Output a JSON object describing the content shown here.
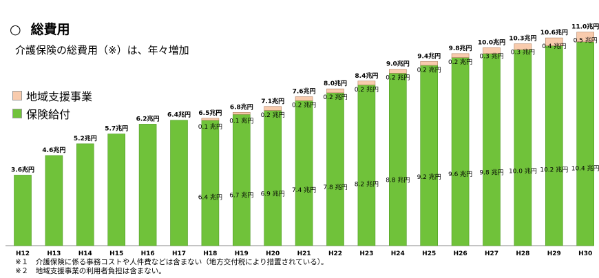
{
  "header": {
    "circle": "○",
    "title": "総費用",
    "subtitle": "介護保険の総費用（※）は、年々増加"
  },
  "legend": [
    {
      "label": "地域支援事業",
      "color": "#f8cbad"
    },
    {
      "label": "保険給付",
      "color": "#70c23a"
    }
  ],
  "notes": [
    "※１　介護保険に係る事務コストや人件費などは含まない（地方交付税により措置されている）。",
    "※２　地域支援事業の利用者負担は含まない。"
  ],
  "chart_data": {
    "type": "bar",
    "stacked": true,
    "categories": [
      "H12",
      "H13",
      "H14",
      "H15",
      "H16",
      "H17",
      "H18",
      "H19",
      "H20",
      "H21",
      "H22",
      "H23",
      "H24",
      "H25",
      "H26",
      "H27",
      "H28",
      "H29",
      "H30"
    ],
    "series": [
      {
        "name": "保険給付",
        "values": [
          3.6,
          4.6,
          5.2,
          5.7,
          6.2,
          6.4,
          6.4,
          6.7,
          6.9,
          7.4,
          7.8,
          8.2,
          8.8,
          9.2,
          9.6,
          9.8,
          10.0,
          10.2,
          10.4
        ],
        "color": "#70c23a"
      },
      {
        "name": "地域支援事業",
        "values": [
          0,
          0,
          0,
          0,
          0,
          0,
          0.1,
          0.1,
          0.2,
          0.2,
          0.2,
          0.2,
          0.2,
          0.2,
          0.2,
          0.3,
          0.3,
          0.4,
          0.5
        ],
        "color": "#f8cbad"
      }
    ],
    "total_labels": [
      "3.6兆円",
      "4.6兆円",
      "5.2兆円",
      "5.7兆円",
      "6.2兆円",
      "6.4兆円",
      "6.5兆円",
      "6.8兆円",
      "7.1兆円",
      "7.6兆円",
      "8.0兆円",
      "8.4兆円",
      "9.0兆円",
      "9.4兆円",
      "9.8兆円",
      "10.0兆円",
      "10.3兆円",
      "10.6兆円",
      "11.0兆円"
    ],
    "benefit_labels": [
      "",
      "",
      "",
      "",
      "",
      "",
      "6.4 兆円",
      "6.7 兆円",
      "6.9 兆円",
      "7.4 兆円",
      "7.8 兆円",
      "8.2 兆円",
      "8.8 兆円",
      "9.2 兆円",
      "9.6 兆円",
      "9.8 兆円",
      "10.0 兆円",
      "10.2 兆円",
      "10.4 兆円"
    ],
    "support_labels": [
      "",
      "",
      "",
      "",
      "",
      "",
      "0.1 兆円",
      "0.1 兆円",
      "0.2 兆円",
      "0.2 兆円",
      "0.2 兆円",
      "0.2 兆円",
      "0.2 兆円",
      "0.2 兆円",
      "0.2 兆円",
      "0.3 兆円",
      "0.3 兆円",
      "0.4 兆円",
      "0.5 兆円"
    ],
    "ylim": [
      0,
      11.2
    ]
  }
}
